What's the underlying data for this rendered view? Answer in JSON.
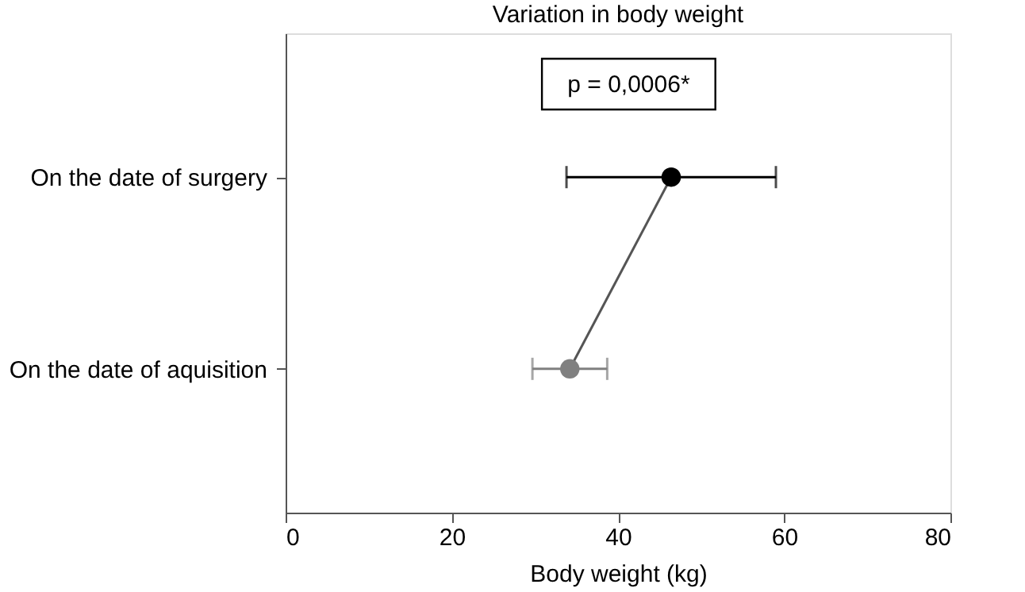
{
  "chart_data": {
    "type": "line",
    "title": "Variation in body weight",
    "xlabel": "Body weight (kg)",
    "orientation": "horizontal",
    "categories": [
      "On the date of surgery",
      "On the date of aquisition"
    ],
    "values": [
      46.4,
      34.2
    ],
    "errors": [
      [
        33.8,
        59.0
      ],
      [
        29.7,
        38.7
      ]
    ],
    "colors": [
      "#000000",
      "#808080"
    ],
    "color": "#555555",
    "marker": "circle",
    "xlim": [
      0,
      80
    ],
    "xticks": [
      0,
      20,
      40,
      60,
      80
    ],
    "annotations": [
      "p = 0,0006*"
    ]
  }
}
